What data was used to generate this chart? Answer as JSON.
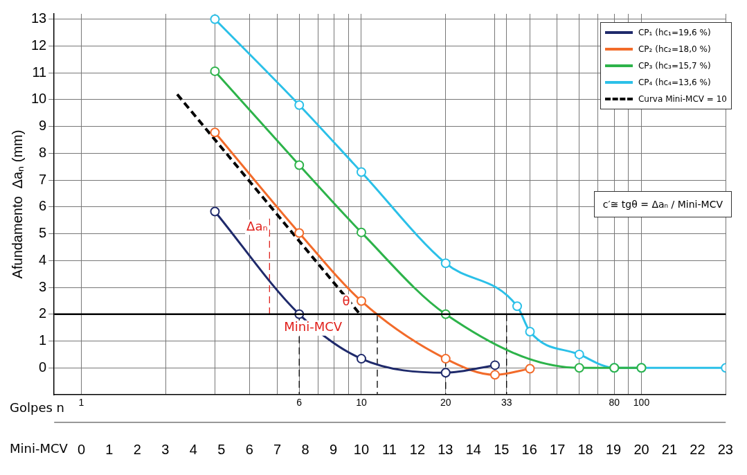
{
  "chart_data": {
    "type": "line",
    "ylabel": "Afundamento  Δaₙ (mm)",
    "xlabel": "Golpes n",
    "x2label": "Mini-MCV",
    "log": "x",
    "xlim": [
      0.8,
      200
    ],
    "ylim": [
      -1,
      13.2
    ],
    "yticks": [
      0,
      1,
      2,
      3,
      4,
      5,
      6,
      7,
      8,
      9,
      10,
      11,
      12,
      13
    ],
    "xticks": [
      1,
      {
        "value": 2,
        "label": null
      },
      {
        "value": 3,
        "label": null
      },
      {
        "value": 4,
        "label": null
      },
      {
        "value": 5,
        "label": null
      },
      6,
      {
        "value": 7,
        "label": null
      },
      {
        "value": 8,
        "label": null
      },
      {
        "value": 9,
        "label": null
      },
      10,
      20,
      {
        "value": 30,
        "label": null
      },
      33,
      {
        "value": 40,
        "label": null
      },
      {
        "value": 50,
        "label": null
      },
      {
        "value": 60,
        "label": null
      },
      {
        "value": 70,
        "label": null
      },
      80,
      {
        "value": 90,
        "label": null
      },
      100,
      {
        "value": 200,
        "label": null
      }
    ],
    "x2lim": [
      -0.97,
      23.01
    ],
    "x2ticks": [
      0,
      1,
      2,
      3,
      4,
      5,
      6,
      7,
      8,
      9,
      10,
      11,
      12,
      13,
      14,
      15,
      16,
      17,
      18,
      19,
      20,
      21,
      22,
      23
    ],
    "grid": true,
    "legend": "top right",
    "marker": "circle",
    "line_style": "solid",
    "series": [
      {
        "name": "CP₁ (hc₁=19,6 %)",
        "color": "#1f2a6b",
        "x": [
          3,
          6,
          10,
          20,
          30
        ],
        "values": [
          5.83,
          2.0,
          0.34,
          -0.18,
          0.1
        ]
      },
      {
        "name": "CP₂ (hc₂=18,0 %)",
        "color": "#f26b2a",
        "x": [
          3,
          6,
          10,
          20,
          30,
          40
        ],
        "values": [
          8.78,
          5.03,
          2.49,
          0.34,
          -0.26,
          -0.03
        ]
      },
      {
        "name": "CP₃ (hc₃=15,7 %)",
        "color": "#2db34a",
        "x": [
          3,
          6,
          10,
          20,
          60,
          80,
          100
        ],
        "values": [
          11.06,
          7.56,
          5.05,
          2.0,
          0,
          0,
          0
        ]
      },
      {
        "name": "CP₄ (hc₄=13,6 %)",
        "color": "#2bc0e8",
        "x": [
          3,
          6,
          10,
          20,
          36,
          40,
          60,
          80,
          100,
          200
        ],
        "values": [
          13,
          9.8,
          7.3,
          3.9,
          2.3,
          1.35,
          0.5,
          0,
          0,
          0
        ]
      },
      {
        "name": "Curva Mini-MCV = 10",
        "color": "#000000",
        "line_style": "dashed",
        "marker": "none",
        "x": [
          2.2,
          10
        ],
        "values": [
          10.2,
          1.94
        ]
      },
      {
        "color": "#e0201b",
        "line_style": "dashed",
        "marker": "none",
        "x": [
          4.7,
          4.7
        ],
        "values": [
          2,
          5.6
        ]
      },
      {
        "color": "#000000",
        "line_style": "dashed",
        "marker": "none",
        "x": [
          6,
          6
        ],
        "values": [
          2,
          -1
        ]
      },
      {
        "color": "#000000",
        "line_style": "dashed",
        "marker": "none",
        "x": [
          11.4,
          11.4
        ],
        "values": [
          2,
          -1
        ]
      },
      {
        "color": "#000000",
        "line_style": "dashed",
        "marker": "none",
        "x": [
          20,
          20
        ],
        "values": [
          0.3,
          -1
        ]
      },
      {
        "color": "#000000",
        "line_style": "dashed",
        "marker": "none",
        "x": [
          33,
          33
        ],
        "values": [
          2,
          -1
        ]
      }
    ],
    "ref_lines": [
      {
        "axis": "y",
        "value": 2,
        "color": "#000000",
        "line_style": "solid"
      }
    ],
    "annotations": [
      {
        "text": "Δaₙ",
        "x": 4.7,
        "y": 5.6
      },
      {
        "text": "θ",
        "x": 10,
        "y": 1.94
      },
      {
        "text": "Mini-MCV",
        "x": 6,
        "y": 2
      },
      "c′≅ tgθ = Δaₙ / Mini-MCV"
    ]
  }
}
